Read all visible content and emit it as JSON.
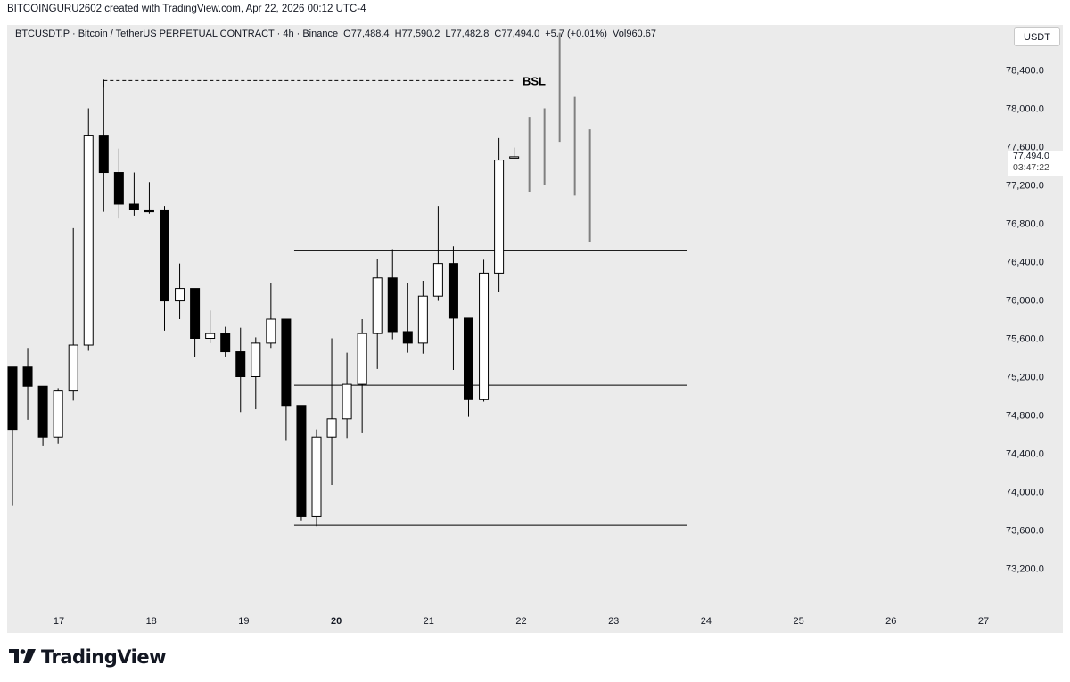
{
  "header": {
    "caption": "BITCOINGURU2602 created with TradingView.com, Apr 22, 2026 00:12 UTC-4"
  },
  "legend": {
    "symbol": "BTCUSDT.P · Bitcoin / TetherUS PERPETUAL CONTRACT · 4h · Binance",
    "open": "O77,488.4",
    "high": "H77,590.2",
    "low": "L77,482.8",
    "close": "C77,494.0",
    "change": "+5.7 (+0.01%)",
    "volume": "Vol960.67"
  },
  "currency_button": "USDT",
  "price_tag": {
    "price": "77,494.0",
    "countdown": "03:47:22"
  },
  "footer": {
    "logo_text": "TradingView"
  },
  "colors": {
    "background": "#ebebeb",
    "bull_body": "#ffffff",
    "bear_body": "#000000",
    "wick": "#000000",
    "projection": "#808080"
  },
  "chart_data": {
    "type": "candlestick",
    "timeframe": "4h",
    "y_ticks": [
      73200,
      73600,
      74000,
      74400,
      74800,
      75200,
      75600,
      76000,
      76400,
      76800,
      77200,
      77600,
      78000,
      78400
    ],
    "y_tick_labels": [
      "73,200.0",
      "73,600.0",
      "74,000.0",
      "74,400.0",
      "74,800.0",
      "75,200.0",
      "75,600.0",
      "76,000.0",
      "76,400.0",
      "76,800.0",
      "77,200.0",
      "77,600.0",
      "78,000.0",
      "78,400.0"
    ],
    "ylim": [
      72900,
      78950
    ],
    "x_labels": [
      "17",
      "18",
      "19",
      "20",
      "21",
      "22",
      "23",
      "24",
      "25",
      "26",
      "27"
    ],
    "bold_x_labels": [
      "20"
    ],
    "candles": [
      {
        "o": 75300,
        "h": 75300,
        "l": 73850,
        "c": 74650
      },
      {
        "o": 75300,
        "h": 75500,
        "l": 74750,
        "c": 75100
      },
      {
        "o": 75100,
        "h": 75100,
        "l": 74480,
        "c": 74570
      },
      {
        "o": 74570,
        "h": 75080,
        "l": 74500,
        "c": 75050
      },
      {
        "o": 75050,
        "h": 76750,
        "l": 74950,
        "c": 75530
      },
      {
        "o": 75530,
        "h": 78000,
        "l": 75470,
        "c": 77720
      },
      {
        "o": 77720,
        "h": 78300,
        "l": 76920,
        "c": 77330
      },
      {
        "o": 77330,
        "h": 77580,
        "l": 76850,
        "c": 77000
      },
      {
        "o": 77000,
        "h": 77330,
        "l": 76880,
        "c": 76940
      },
      {
        "o": 76940,
        "h": 77230,
        "l": 76900,
        "c": 76920
      },
      {
        "o": 76940,
        "h": 76980,
        "l": 75680,
        "c": 75990
      },
      {
        "o": 75990,
        "h": 76380,
        "l": 75800,
        "c": 76120
      },
      {
        "o": 76120,
        "h": 76120,
        "l": 75400,
        "c": 75600
      },
      {
        "o": 75600,
        "h": 75890,
        "l": 75550,
        "c": 75650
      },
      {
        "o": 75650,
        "h": 75720,
        "l": 75410,
        "c": 75460
      },
      {
        "o": 75460,
        "h": 75710,
        "l": 74830,
        "c": 75200
      },
      {
        "o": 75200,
        "h": 75610,
        "l": 74860,
        "c": 75550
      },
      {
        "o": 75550,
        "h": 76180,
        "l": 75500,
        "c": 75800
      },
      {
        "o": 75800,
        "h": 75800,
        "l": 74530,
        "c": 74900
      },
      {
        "o": 74900,
        "h": 74900,
        "l": 73700,
        "c": 73740
      },
      {
        "o": 73740,
        "h": 74650,
        "l": 73640,
        "c": 74570
      },
      {
        "o": 74570,
        "h": 75600,
        "l": 74070,
        "c": 74760
      },
      {
        "o": 74760,
        "h": 75450,
        "l": 74560,
        "c": 75120
      },
      {
        "o": 75120,
        "h": 75800,
        "l": 74610,
        "c": 75650
      },
      {
        "o": 75650,
        "h": 76430,
        "l": 75280,
        "c": 76230
      },
      {
        "o": 76230,
        "h": 76530,
        "l": 75590,
        "c": 75670
      },
      {
        "o": 75670,
        "h": 76180,
        "l": 75450,
        "c": 75550
      },
      {
        "o": 75550,
        "h": 76200,
        "l": 75440,
        "c": 76040
      },
      {
        "o": 76040,
        "h": 76980,
        "l": 75990,
        "c": 76380
      },
      {
        "o": 76380,
        "h": 76560,
        "l": 75270,
        "c": 75810
      },
      {
        "o": 75810,
        "h": 75810,
        "l": 74780,
        "c": 74960
      },
      {
        "o": 74960,
        "h": 76420,
        "l": 74940,
        "c": 76280
      },
      {
        "o": 76280,
        "h": 77690,
        "l": 76080,
        "c": 77460
      },
      {
        "o": 77480,
        "h": 77590,
        "l": 77480,
        "c": 77494
      }
    ],
    "projection_wicks": [
      {
        "h": 77910,
        "l": 77130
      },
      {
        "h": 78000,
        "l": 77200
      },
      {
        "h": 78790,
        "l": 77650
      },
      {
        "h": 78120,
        "l": 77090
      },
      {
        "h": 77780,
        "l": 76600
      }
    ],
    "levels": [
      {
        "price": 76520,
        "from_candle": 19,
        "to_x_label": "24"
      },
      {
        "price": 75110,
        "from_candle": 19,
        "to_x_label": "24"
      },
      {
        "price": 73650,
        "from_candle": 19,
        "to_x_label": "24"
      }
    ],
    "bsl": {
      "label": "BSL",
      "price": 78290,
      "from_candle": 6
    }
  }
}
